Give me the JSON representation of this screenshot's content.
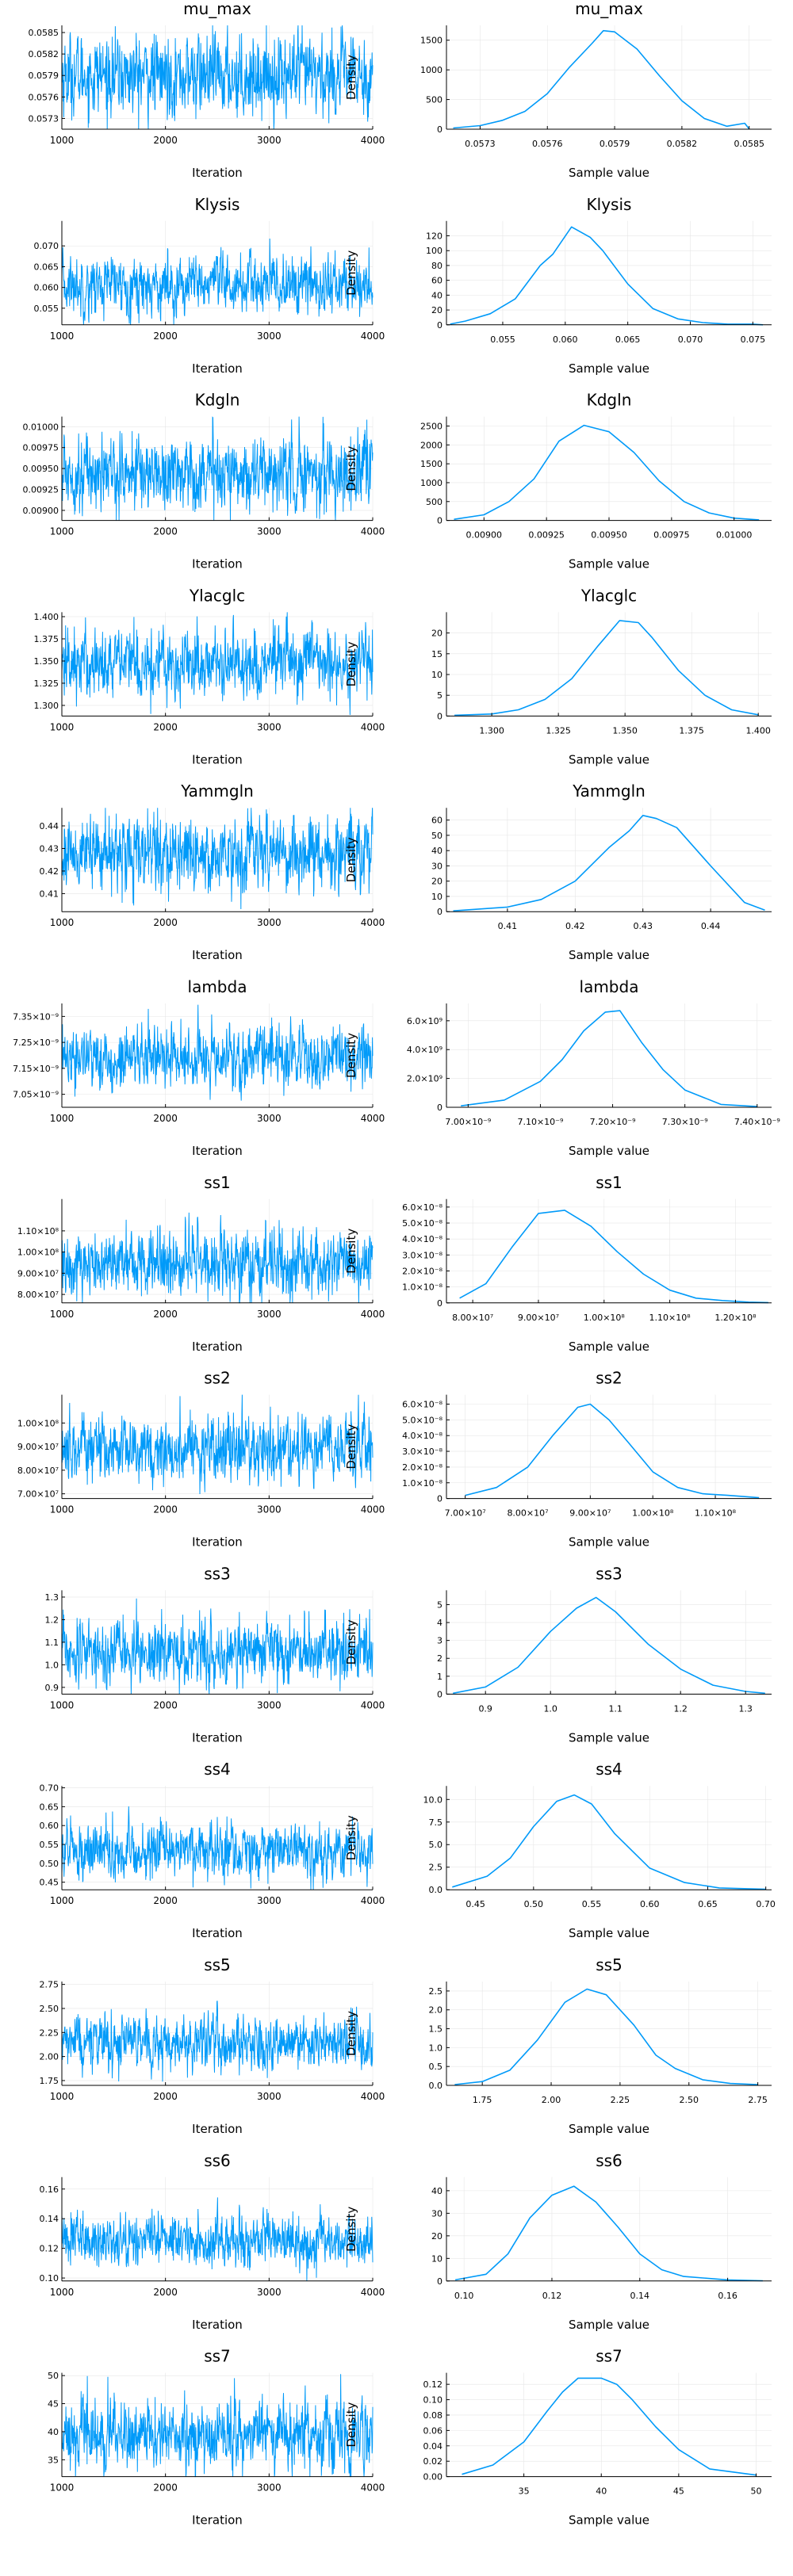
{
  "figure": {
    "trace_xlabel": "Iteration",
    "density_xlabel": "Sample value",
    "density_ylabel": "Density",
    "line_color": "#009af9"
  },
  "chart_data": [
    {
      "title": "mu_max",
      "trace": {
        "type": "line",
        "x_range": [
          1000,
          4000
        ],
        "x_ticks": [
          "1000",
          "2000",
          "3000",
          "4000"
        ],
        "y_ticks": [
          "0.0573",
          "0.0576",
          "0.0579",
          "0.0582",
          "0.0585"
        ],
        "y_range": [
          0.05715,
          0.0586
        ],
        "center": 0.0579,
        "spread": 0.00028
      },
      "density": {
        "type": "line",
        "x_ticks": [
          "0.0573",
          "0.0576",
          "0.0579",
          "0.0582",
          "0.0585"
        ],
        "y_ticks": [
          "0",
          "500",
          "1000",
          "1500"
        ],
        "x_range": [
          0.05715,
          0.0586
        ],
        "y_range": [
          0,
          1750
        ],
        "x": [
          0.05718,
          0.0573,
          0.0574,
          0.0575,
          0.0576,
          0.0577,
          0.0578,
          0.05785,
          0.0579,
          0.058,
          0.0581,
          0.0582,
          0.0583,
          0.0584,
          0.05848,
          0.0585
        ],
        "y": [
          20,
          60,
          150,
          300,
          600,
          1050,
          1450,
          1660,
          1640,
          1350,
          900,
          480,
          180,
          50,
          100,
          5
        ]
      }
    },
    {
      "title": "Klysis",
      "trace": {
        "type": "line",
        "x_range": [
          1000,
          4000
        ],
        "x_ticks": [
          "1000",
          "2000",
          "3000",
          "4000"
        ],
        "y_ticks": [
          "0.055",
          "0.060",
          "0.065",
          "0.070"
        ],
        "y_range": [
          0.051,
          0.076
        ],
        "center": 0.0605,
        "spread": 0.0035
      },
      "density": {
        "type": "line",
        "x_ticks": [
          "0.055",
          "0.060",
          "0.065",
          "0.070",
          "0.075"
        ],
        "y_ticks": [
          "0",
          "20",
          "40",
          "60",
          "80",
          "100",
          "120"
        ],
        "x_range": [
          0.0505,
          0.0765
        ],
        "y_range": [
          0,
          140
        ],
        "x": [
          0.0508,
          0.052,
          0.054,
          0.056,
          0.058,
          0.059,
          0.0605,
          0.062,
          0.063,
          0.065,
          0.067,
          0.069,
          0.071,
          0.073,
          0.075,
          0.0758
        ],
        "y": [
          1,
          5,
          15,
          35,
          80,
          95,
          132,
          118,
          100,
          55,
          22,
          8,
          3,
          1,
          1,
          0
        ]
      }
    },
    {
      "title": "Kdgln",
      "trace": {
        "type": "line",
        "x_range": [
          1000,
          4000
        ],
        "x_ticks": [
          "1000",
          "2000",
          "3000",
          "4000"
        ],
        "y_ticks": [
          "0.00900",
          "0.00925",
          "0.00950",
          "0.00975",
          "0.01000"
        ],
        "y_range": [
          0.00888,
          0.01012
        ],
        "center": 0.00945,
        "spread": 0.00022
      },
      "density": {
        "type": "line",
        "x_ticks": [
          "0.00900",
          "0.00925",
          "0.00950",
          "0.00975",
          "0.01000"
        ],
        "y_ticks": [
          "0",
          "500",
          "1000",
          "1500",
          "2000",
          "2500"
        ],
        "x_range": [
          0.00885,
          0.01015
        ],
        "y_range": [
          0,
          2750
        ],
        "x": [
          0.00888,
          0.009,
          0.0091,
          0.0092,
          0.0093,
          0.0094,
          0.0095,
          0.0096,
          0.0097,
          0.0098,
          0.0099,
          0.01,
          0.0101
        ],
        "y": [
          30,
          150,
          500,
          1100,
          2100,
          2520,
          2350,
          1800,
          1050,
          500,
          200,
          60,
          15
        ]
      }
    },
    {
      "title": "Ylacglc",
      "trace": {
        "type": "line",
        "x_range": [
          1000,
          4000
        ],
        "x_ticks": [
          "1000",
          "2000",
          "3000",
          "4000"
        ],
        "y_ticks": [
          "1.300",
          "1.325",
          "1.350",
          "1.375",
          "1.400"
        ],
        "y_range": [
          1.288,
          1.405
        ],
        "center": 1.348,
        "spread": 0.02
      },
      "density": {
        "type": "line",
        "x_ticks": [
          "1.300",
          "1.325",
          "1.350",
          "1.375",
          "1.400"
        ],
        "y_ticks": [
          "0",
          "5",
          "10",
          "15",
          "20"
        ],
        "x_range": [
          1.283,
          1.405
        ],
        "y_range": [
          0,
          25
        ],
        "x": [
          1.286,
          1.3,
          1.31,
          1.32,
          1.33,
          1.34,
          1.348,
          1.355,
          1.36,
          1.37,
          1.38,
          1.39,
          1.4
        ],
        "y": [
          0.2,
          0.5,
          1.5,
          4,
          9,
          17,
          23,
          22.5,
          19,
          11,
          5,
          1.5,
          0.3
        ]
      }
    },
    {
      "title": "Yammgln",
      "trace": {
        "type": "line",
        "x_range": [
          1000,
          4000
        ],
        "x_ticks": [
          "1000",
          "2000",
          "3000",
          "4000"
        ],
        "y_ticks": [
          "0.41",
          "0.42",
          "0.43",
          "0.44"
        ],
        "y_range": [
          0.402,
          0.448
        ],
        "center": 0.428,
        "spread": 0.008
      },
      "density": {
        "type": "line",
        "x_ticks": [
          "0.41",
          "0.42",
          "0.43",
          "0.44"
        ],
        "y_ticks": [
          "0",
          "10",
          "20",
          "30",
          "40",
          "50",
          "60"
        ],
        "x_range": [
          0.401,
          0.449
        ],
        "y_range": [
          0,
          68
        ],
        "x": [
          0.402,
          0.41,
          0.415,
          0.42,
          0.425,
          0.428,
          0.43,
          0.432,
          0.435,
          0.44,
          0.445,
          0.448
        ],
        "y": [
          0.5,
          3,
          8,
          20,
          42,
          53,
          63,
          61,
          55,
          30,
          6,
          1
        ]
      }
    },
    {
      "title": "lambda",
      "trace": {
        "type": "line",
        "x_range": [
          1000,
          4000
        ],
        "x_ticks": [
          "1000",
          "2000",
          "3000",
          "4000"
        ],
        "y_ticks": [
          "7.05×10⁻⁹",
          "7.15×10⁻⁹",
          "7.25×10⁻⁹",
          "7.35×10⁻⁹"
        ],
        "y_range": [
          7e-09,
          7.4e-09
        ],
        "center": 7.19e-09,
        "spread": 6e-11
      },
      "density": {
        "type": "line",
        "x_ticks": [
          "7.00×10⁻⁹",
          "7.10×10⁻⁹",
          "7.20×10⁻⁹",
          "7.30×10⁻⁹",
          "7.40×10⁻⁹"
        ],
        "y_ticks": [
          "0",
          "2.0×10⁹",
          "4.0×10⁹",
          "6.0×10⁹"
        ],
        "x_range": [
          6.97e-09,
          7.42e-09
        ],
        "y_range": [
          0,
          7200000000.0
        ],
        "x": [
          6.99e-09,
          7.05e-09,
          7.1e-09,
          7.13e-09,
          7.16e-09,
          7.19e-09,
          7.21e-09,
          7.24e-09,
          7.27e-09,
          7.3e-09,
          7.35e-09,
          7.4e-09
        ],
        "y": [
          100000000.0,
          500000000.0,
          1800000000.0,
          3300000000.0,
          5300000000.0,
          6600000000.0,
          6700000000.0,
          4500000000.0,
          2600000000.0,
          1200000000.0,
          200000000.0,
          50000000.0
        ]
      }
    },
    {
      "title": "ss1",
      "trace": {
        "type": "line",
        "x_range": [
          1000,
          4000
        ],
        "x_ticks": [
          "1000",
          "2000",
          "3000",
          "4000"
        ],
        "y_ticks": [
          "8.00×10⁷",
          "9.00×10⁷",
          "1.00×10⁸",
          "1.10×10⁸"
        ],
        "y_range": [
          76000000.0,
          125000000.0
        ],
        "center": 95000000.0,
        "spread": 8000000.0
      },
      "density": {
        "type": "line",
        "x_ticks": [
          "8.00×10⁷",
          "9.00×10⁷",
          "1.00×10⁸",
          "1.10×10⁸",
          "1.20×10⁸"
        ],
        "y_ticks": [
          "0",
          "1.0×10⁻⁸",
          "2.0×10⁻⁸",
          "3.0×10⁻⁸",
          "4.0×10⁻⁸",
          "5.0×10⁻⁸",
          "6.0×10⁻⁸"
        ],
        "x_range": [
          76000000.0,
          125500000.0
        ],
        "y_range": [
          0,
          6.5e-08
        ],
        "x": [
          78000000.0,
          82000000.0,
          86000000.0,
          90000000.0,
          94000000.0,
          98000000.0,
          102000000.0,
          106000000.0,
          110000000.0,
          114000000.0,
          118000000.0,
          122000000.0,
          125000000.0
        ],
        "y": [
          3e-09,
          1.2e-08,
          3.5e-08,
          5.6e-08,
          5.8e-08,
          4.8e-08,
          3.2e-08,
          1.8e-08,
          8e-09,
          3e-09,
          1.5e-09,
          5e-10,
          2e-10
        ]
      }
    },
    {
      "title": "ss2",
      "trace": {
        "type": "line",
        "x_range": [
          1000,
          4000
        ],
        "x_ticks": [
          "1000",
          "2000",
          "3000",
          "4000"
        ],
        "y_ticks": [
          "7.00×10⁷",
          "8.00×10⁷",
          "9.00×10⁷",
          "1.00×10⁸"
        ],
        "y_range": [
          68000000.0,
          112000000.0
        ],
        "center": 89000000.0,
        "spread": 7000000.0
      },
      "density": {
        "type": "line",
        "x_ticks": [
          "7.00×10⁷",
          "8.00×10⁷",
          "9.00×10⁷",
          "1.00×10⁸",
          "1.10×10⁸"
        ],
        "y_ticks": [
          "0",
          "1.0×10⁻⁸",
          "2.0×10⁻⁸",
          "3.0×10⁻⁸",
          "4.0×10⁻⁸",
          "5.0×10⁻⁸",
          "6.0×10⁻⁸"
        ],
        "x_range": [
          67000000.0,
          119000000.0
        ],
        "y_range": [
          0,
          6.6e-08
        ],
        "x": [
          70000000.0,
          75000000.0,
          80000000.0,
          84000000.0,
          88000000.0,
          90000000.0,
          93000000.0,
          96000000.0,
          100000000.0,
          104000000.0,
          108000000.0,
          112000000.0,
          117000000.0
        ],
        "y": [
          2e-09,
          7e-09,
          2e-08,
          4e-08,
          5.8e-08,
          6e-08,
          5e-08,
          3.6e-08,
          1.7e-08,
          7e-09,
          3e-09,
          2e-09,
          5e-10
        ]
      }
    },
    {
      "title": "ss3",
      "trace": {
        "type": "line",
        "x_range": [
          1000,
          4000
        ],
        "x_ticks": [
          "1000",
          "2000",
          "3000",
          "4000"
        ],
        "y_ticks": [
          "0.9",
          "1.0",
          "1.1",
          "1.2",
          "1.3"
        ],
        "y_range": [
          0.87,
          1.33
        ],
        "center": 1.06,
        "spread": 0.07
      },
      "density": {
        "type": "line",
        "x_ticks": [
          "0.9",
          "1.0",
          "1.1",
          "1.2",
          "1.3"
        ],
        "y_ticks": [
          "0",
          "1",
          "2",
          "3",
          "4",
          "5"
        ],
        "x_range": [
          0.84,
          1.34
        ],
        "y_range": [
          0,
          5.8
        ],
        "x": [
          0.85,
          0.9,
          0.95,
          1.0,
          1.04,
          1.07,
          1.1,
          1.15,
          1.2,
          1.25,
          1.3,
          1.33
        ],
        "y": [
          0.05,
          0.4,
          1.5,
          3.5,
          4.8,
          5.4,
          4.6,
          2.8,
          1.4,
          0.5,
          0.15,
          0.05
        ]
      }
    },
    {
      "title": "ss4",
      "trace": {
        "type": "line",
        "x_range": [
          1000,
          4000
        ],
        "x_ticks": [
          "1000",
          "2000",
          "3000",
          "4000"
        ],
        "y_ticks": [
          "0.45",
          "0.50",
          "0.55",
          "0.60",
          "0.65",
          "0.70"
        ],
        "y_range": [
          0.43,
          0.705
        ],
        "center": 0.535,
        "spread": 0.035
      },
      "density": {
        "type": "line",
        "x_ticks": [
          "0.45",
          "0.50",
          "0.55",
          "0.60",
          "0.65",
          "0.70"
        ],
        "y_ticks": [
          "0.0",
          "2.5",
          "5.0",
          "7.5",
          "10.0"
        ],
        "x_range": [
          0.425,
          0.705
        ],
        "y_range": [
          0,
          11.5
        ],
        "x": [
          0.43,
          0.46,
          0.48,
          0.5,
          0.52,
          0.535,
          0.55,
          0.57,
          0.6,
          0.63,
          0.66,
          0.7
        ],
        "y": [
          0.3,
          1.5,
          3.5,
          7,
          9.8,
          10.5,
          9.5,
          6.2,
          2.4,
          0.8,
          0.2,
          0.05
        ]
      }
    },
    {
      "title": "ss5",
      "trace": {
        "type": "line",
        "x_range": [
          1000,
          4000
        ],
        "x_ticks": [
          "1000",
          "2000",
          "3000",
          "4000"
        ],
        "y_ticks": [
          "1.75",
          "2.00",
          "2.25",
          "2.50",
          "2.75"
        ],
        "y_range": [
          1.7,
          2.78
        ],
        "center": 2.14,
        "spread": 0.14
      },
      "density": {
        "type": "line",
        "x_ticks": [
          "1.75",
          "2.00",
          "2.25",
          "2.50",
          "2.75"
        ],
        "y_ticks": [
          "0.0",
          "0.5",
          "1.0",
          "1.5",
          "2.0",
          "2.5"
        ],
        "x_range": [
          1.62,
          2.8
        ],
        "y_range": [
          0,
          2.75
        ],
        "x": [
          1.65,
          1.75,
          1.85,
          1.95,
          2.05,
          2.13,
          2.2,
          2.3,
          2.38,
          2.45,
          2.55,
          2.65,
          2.75
        ],
        "y": [
          0.02,
          0.1,
          0.4,
          1.2,
          2.2,
          2.55,
          2.4,
          1.6,
          0.8,
          0.45,
          0.15,
          0.05,
          0.02
        ]
      }
    },
    {
      "title": "ss6",
      "trace": {
        "type": "line",
        "x_range": [
          1000,
          4000
        ],
        "x_ticks": [
          "1000",
          "2000",
          "3000",
          "4000"
        ],
        "y_ticks": [
          "0.10",
          "0.12",
          "0.14",
          "0.16"
        ],
        "y_range": [
          0.098,
          0.168
        ],
        "center": 0.125,
        "spread": 0.009
      },
      "density": {
        "type": "line",
        "x_ticks": [
          "0.10",
          "0.12",
          "0.14",
          "0.16"
        ],
        "y_ticks": [
          "0",
          "10",
          "20",
          "30",
          "40"
        ],
        "x_range": [
          0.096,
          0.17
        ],
        "y_range": [
          0,
          46
        ],
        "x": [
          0.098,
          0.105,
          0.11,
          0.115,
          0.12,
          0.125,
          0.13,
          0.135,
          0.14,
          0.145,
          0.15,
          0.16,
          0.168
        ],
        "y": [
          0.5,
          3,
          12,
          28,
          38,
          42,
          35,
          24,
          12,
          5,
          2,
          0.5,
          0.1
        ]
      }
    },
    {
      "title": "ss7",
      "trace": {
        "type": "line",
        "x_range": [
          1000,
          4000
        ],
        "x_ticks": [
          "1000",
          "2000",
          "3000",
          "4000"
        ],
        "y_ticks": [
          "35",
          "40",
          "45",
          "50"
        ],
        "y_range": [
          32,
          50.5
        ],
        "center": 39.5,
        "spread": 3.0
      },
      "density": {
        "type": "line",
        "x_ticks": [
          "35",
          "40",
          "45",
          "50"
        ],
        "y_ticks": [
          "0.00",
          "0.02",
          "0.04",
          "0.06",
          "0.08",
          "0.10",
          "0.12"
        ],
        "x_range": [
          30,
          51
        ],
        "y_range": [
          0,
          0.135
        ],
        "x": [
          31,
          33,
          35,
          36.5,
          37.5,
          38.5,
          40,
          41,
          42,
          43.5,
          45,
          47,
          50
        ],
        "y": [
          0.003,
          0.015,
          0.045,
          0.085,
          0.11,
          0.128,
          0.128,
          0.12,
          0.1,
          0.065,
          0.035,
          0.01,
          0.002
        ]
      }
    }
  ]
}
